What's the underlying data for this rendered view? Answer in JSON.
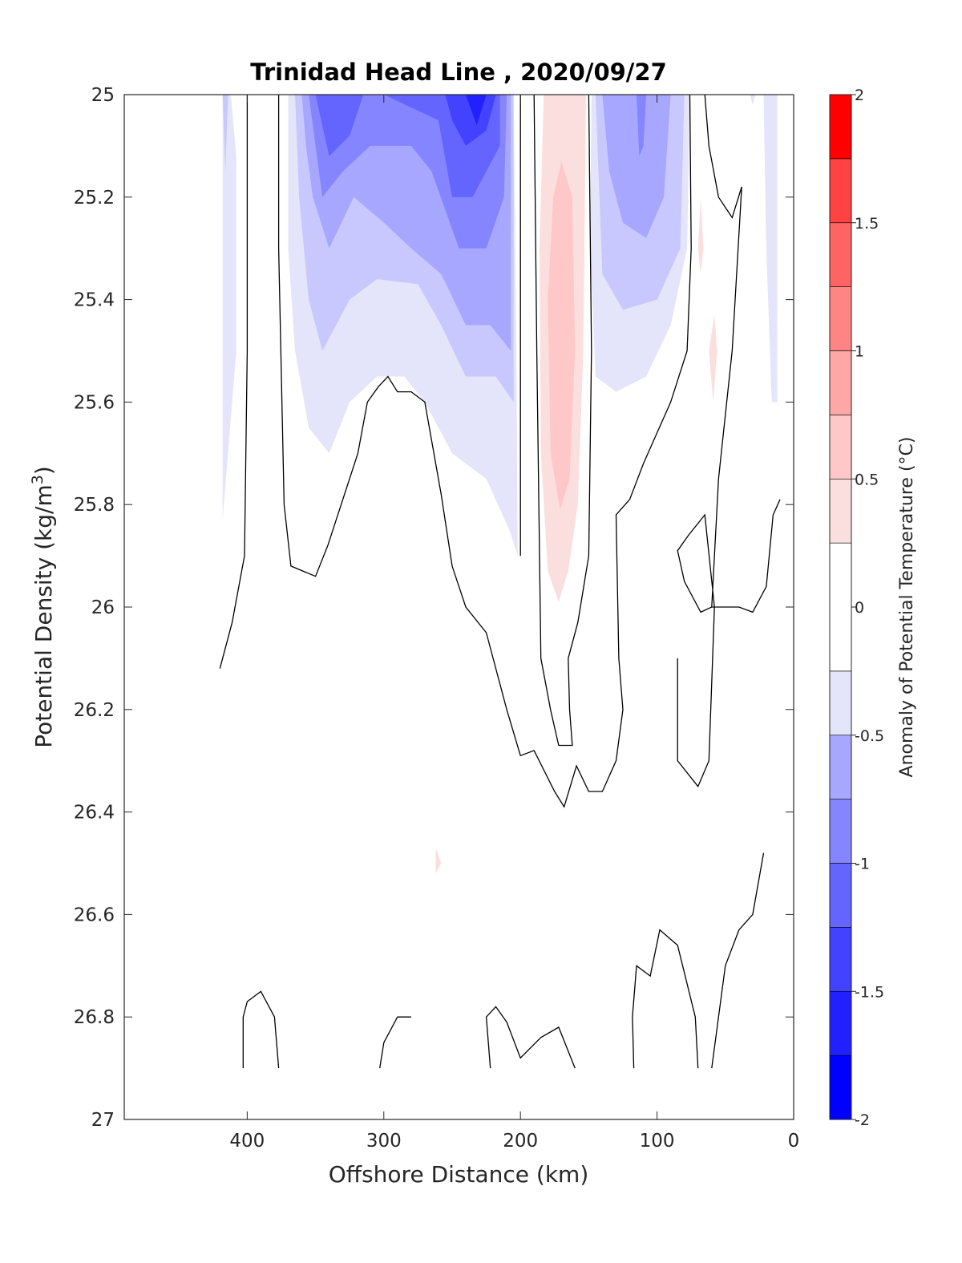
{
  "chart_data": {
    "type": "heatmap",
    "subtype": "filled contour section",
    "title": "Trinidad Head Line , 2020/09/27",
    "xlabel": "Offshore Distance (km)",
    "ylabel": "Potential Density (kg/m",
    "ylabel_sup": "3",
    "ylabel_close": ")",
    "xlim": [
      490,
      0
    ],
    "x_reversed": true,
    "ylim": [
      25,
      27
    ],
    "y_reversed": true,
    "x_ticks": [
      400,
      300,
      200,
      100,
      0
    ],
    "y_ticks": [
      "25",
      "25.2",
      "25.4",
      "25.6",
      "25.8",
      "26",
      "26.2",
      "26.4",
      "26.6",
      "26.8",
      "27"
    ],
    "colorbar": {
      "label": "Anomaly of Potential Temperature (°C)",
      "range": [
        -2,
        2
      ],
      "tick_labels": [
        "-2",
        "-1.5",
        "-1",
        "-0.5",
        "0",
        "0.5",
        "1",
        "1.5",
        "2"
      ],
      "levels": [
        -2,
        -1.75,
        -1.5,
        -1.25,
        -1,
        -0.75,
        -0.5,
        -0.25,
        0.25,
        0.5,
        0.75,
        1,
        1.25,
        1.5,
        1.75,
        2
      ],
      "colors": [
        "#0000ff",
        "#2121ff",
        "#4242ff",
        "#6464ff",
        "#8585ff",
        "#a7a7ff",
        "#c8c8ff",
        "#e4e4fb",
        "#ffffff",
        "#fbdfdf",
        "#ffc8c8",
        "#ffa7a7",
        "#ff8585",
        "#ff6464",
        "#ff4242",
        "#ff2121",
        "#ff0000"
      ]
    },
    "zero_contour_lines": [
      [
        [
          420,
          26.12
        ],
        [
          411,
          26.03
        ],
        [
          402,
          25.9
        ],
        [
          400,
          25.5
        ],
        [
          400,
          25.0
        ]
      ],
      [
        [
          377,
          25.0
        ],
        [
          377,
          25.3
        ],
        [
          373,
          25.8
        ],
        [
          368,
          25.92
        ],
        [
          350,
          25.94
        ],
        [
          341,
          25.88
        ],
        [
          319,
          25.7
        ],
        [
          312,
          25.6
        ],
        [
          304,
          25.57
        ],
        [
          297,
          25.55
        ],
        [
          290,
          25.58
        ],
        [
          280,
          25.58
        ],
        [
          270,
          25.6
        ],
        [
          258,
          25.78
        ],
        [
          250,
          25.92
        ],
        [
          240,
          26.0
        ],
        [
          225,
          26.05
        ],
        [
          210,
          26.2
        ],
        [
          200,
          26.29
        ],
        [
          190,
          26.28
        ],
        [
          175,
          26.36
        ],
        [
          168,
          26.39
        ],
        [
          159,
          26.31
        ],
        [
          150,
          26.36
        ],
        [
          140,
          26.36
        ],
        [
          130,
          26.3
        ],
        [
          125,
          26.2
        ],
        [
          128,
          26.1
        ],
        [
          130,
          25.82
        ],
        [
          120,
          25.79
        ],
        [
          110,
          25.72
        ],
        [
          90,
          25.6
        ],
        [
          78,
          25.5
        ],
        [
          75,
          25.3
        ],
        [
          76,
          25.0
        ]
      ],
      [
        [
          200,
          25.0
        ],
        [
          200,
          25.9
        ]
      ],
      [
        [
          190,
          25.0
        ],
        [
          188,
          25.5
        ],
        [
          186,
          25.9
        ],
        [
          185,
          26.1
        ],
        [
          178,
          26.2
        ],
        [
          172,
          26.27
        ],
        [
          162,
          26.27
        ],
        [
          164,
          26.2
        ],
        [
          165,
          26.1
        ],
        [
          158,
          26.03
        ],
        [
          150,
          25.9
        ],
        [
          148,
          25.5
        ],
        [
          150,
          25.0
        ]
      ],
      [
        [
          65,
          25.0
        ],
        [
          62,
          25.1
        ],
        [
          55,
          25.2
        ],
        [
          45,
          25.24
        ],
        [
          38,
          25.18
        ],
        [
          45,
          25.5
        ],
        [
          55,
          25.75
        ],
        [
          60,
          26.0
        ],
        [
          68,
          26.01
        ],
        [
          80,
          25.95
        ],
        [
          85,
          25.89
        ],
        [
          77,
          25.86
        ],
        [
          65,
          25.82
        ],
        [
          58,
          26.0
        ],
        [
          62,
          26.3
        ],
        [
          70,
          26.35
        ],
        [
          85,
          26.3
        ],
        [
          85,
          26.1
        ]
      ],
      [
        [
          60,
          26.0
        ],
        [
          40,
          26.0
        ],
        [
          30,
          26.01
        ],
        [
          20,
          25.96
        ],
        [
          15,
          25.82
        ],
        [
          10,
          25.79
        ]
      ],
      [
        [
          403,
          26.9
        ],
        [
          403,
          26.8
        ],
        [
          400,
          26.77
        ],
        [
          390,
          26.75
        ],
        [
          380,
          26.8
        ],
        [
          377,
          26.9
        ]
      ],
      [
        [
          303,
          26.9
        ],
        [
          300,
          26.85
        ],
        [
          290,
          26.8
        ],
        [
          280,
          26.8
        ]
      ],
      [
        [
          222,
          26.9
        ],
        [
          225,
          26.8
        ],
        [
          218,
          26.78
        ],
        [
          210,
          26.81
        ],
        [
          200,
          26.88
        ],
        [
          185,
          26.84
        ],
        [
          172,
          26.82
        ],
        [
          160,
          26.9
        ]
      ],
      [
        [
          117,
          26.9
        ],
        [
          118,
          26.8
        ],
        [
          115,
          26.7
        ],
        [
          105,
          26.72
        ],
        [
          98,
          26.63
        ],
        [
          85,
          26.66
        ],
        [
          72,
          26.8
        ],
        [
          70,
          26.9
        ]
      ],
      [
        [
          60,
          26.9
        ],
        [
          50,
          26.7
        ],
        [
          40,
          26.63
        ],
        [
          30,
          26.6
        ],
        [
          22,
          26.48
        ]
      ]
    ]
  }
}
